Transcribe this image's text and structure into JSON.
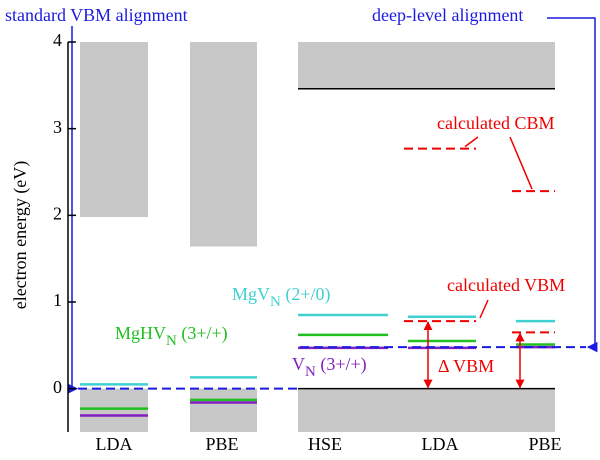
{
  "chart_data": {
    "type": "band-alignment",
    "ylabel": "electron energy (eV)",
    "ylim": [
      -0.5,
      4
    ],
    "yticks": [
      0,
      1,
      2,
      3,
      4
    ],
    "categories": [
      "LDA",
      "PBE",
      "HSE",
      "LDA",
      "PBE"
    ],
    "band_color": "#c8c8c8",
    "conduction_band_min": [
      1.98,
      1.64,
      3.46,
      3.46,
      3.46
    ],
    "valence_band_max": [
      0,
      0,
      0,
      0,
      0
    ],
    "series": [
      {
        "name": "MgV",
        "name_sub": "N",
        "name_suffix": " (2+/0)",
        "color": "#40d0d0",
        "values": [
          0.05,
          0.13,
          0.85,
          0.83,
          0.78
        ]
      },
      {
        "name": "MgHV",
        "name_sub": "N",
        "name_suffix": " (3+/+)",
        "color": "#20c020",
        "values": [
          -0.23,
          -0.13,
          0.62,
          0.55,
          0.51
        ]
      },
      {
        "name": "V",
        "name_sub": "N",
        "name_suffix": " (3+/+)",
        "color": "#8020c0",
        "values": [
          -0.31,
          -0.16,
          0.47,
          0.47,
          0.48
        ]
      }
    ],
    "calculated_cbm": {
      "label": "calculated CBM",
      "color": "#ee0000",
      "values": [
        null,
        null,
        null,
        2.77,
        2.28
      ]
    },
    "calculated_vbm": {
      "label": "calculated VBM",
      "color": "#ee0000",
      "values": [
        null,
        null,
        null,
        0.78,
        0.65
      ]
    },
    "delta_vbm_label": "Δ VBM",
    "standard_alignment": {
      "label": "standard VBM alignment",
      "value": 0,
      "color": "#1a1ae0"
    },
    "deep_alignment": {
      "label": "deep-level alignment",
      "value": 0.48,
      "color": "#1a1ae0"
    }
  }
}
